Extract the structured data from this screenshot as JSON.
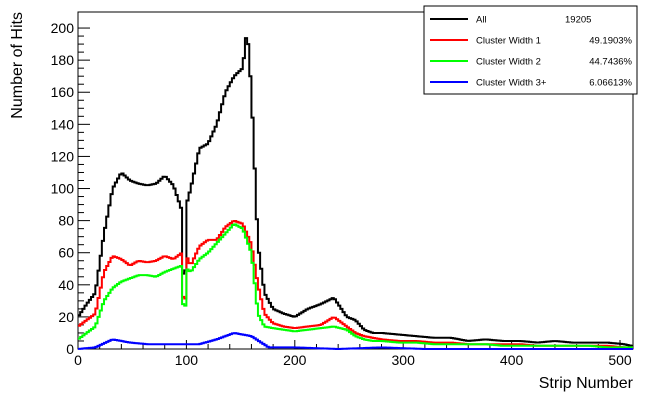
{
  "chart_data": {
    "type": "line",
    "title": "",
    "xlabel": "Strip Number",
    "ylabel": "Number of Hits",
    "xlim": [
      0,
      512
    ],
    "ylim": [
      0,
      210
    ],
    "x_ticks": [
      0,
      100,
      200,
      300,
      400,
      500
    ],
    "y_ticks": [
      0,
      20,
      40,
      60,
      80,
      100,
      120,
      140,
      160,
      180,
      200
    ],
    "grid": false,
    "legend_position": "top-right",
    "bin_width": 2,
    "series": [
      {
        "name": "All",
        "value_label": "19205",
        "color": "#000000",
        "x": [
          0,
          8,
          16,
          24,
          32,
          40,
          48,
          56,
          64,
          72,
          80,
          88,
          96,
          98,
          100,
          104,
          112,
          120,
          128,
          136,
          144,
          152,
          156,
          160,
          166,
          172,
          180,
          190,
          200,
          212,
          224,
          236,
          248,
          256,
          264,
          272,
          280,
          296,
          312,
          328,
          344,
          360,
          376,
          392,
          408,
          424,
          440,
          456,
          472,
          488,
          504,
          510
        ],
        "y": [
          20,
          28,
          35,
          72,
          100,
          110,
          105,
          103,
          102,
          103,
          108,
          102,
          86,
          8,
          90,
          100,
          125,
          128,
          140,
          160,
          170,
          175,
          200,
          160,
          65,
          35,
          25,
          22,
          20,
          25,
          28,
          32,
          20,
          18,
          12,
          10,
          10,
          9,
          8,
          7,
          7,
          5,
          6,
          5,
          5,
          4,
          5,
          4,
          4,
          4,
          3,
          2
        ]
      },
      {
        "name": "Cluster Width 1",
        "value_label": "49.1903%",
        "color": "#ff0000",
        "x": [
          0,
          8,
          16,
          24,
          32,
          40,
          48,
          56,
          64,
          72,
          80,
          88,
          96,
          98,
          100,
          104,
          112,
          120,
          128,
          136,
          144,
          152,
          160,
          166,
          172,
          180,
          190,
          200,
          212,
          224,
          236,
          248,
          256,
          264,
          272,
          280,
          296,
          312,
          328,
          344,
          360,
          376,
          392,
          408,
          424,
          440,
          456,
          472,
          488,
          504,
          510
        ],
        "y": [
          14,
          18,
          22,
          48,
          58,
          56,
          52,
          55,
          54,
          55,
          58,
          56,
          60,
          5,
          58,
          52,
          64,
          68,
          68,
          76,
          80,
          78,
          65,
          40,
          22,
          16,
          14,
          13,
          14,
          15,
          20,
          14,
          10,
          8,
          7,
          6,
          5,
          5,
          4,
          4,
          3,
          3,
          3,
          3,
          2,
          2,
          2,
          2,
          2,
          1,
          1
        ]
      },
      {
        "name": "Cluster Width 2",
        "value_label": "44.7436%",
        "color": "#00ff00",
        "x": [
          0,
          8,
          16,
          24,
          32,
          40,
          48,
          56,
          64,
          72,
          80,
          88,
          96,
          98,
          100,
          104,
          112,
          120,
          128,
          136,
          144,
          152,
          160,
          166,
          172,
          180,
          190,
          200,
          212,
          224,
          236,
          248,
          256,
          264,
          272,
          280,
          296,
          312,
          328,
          344,
          360,
          376,
          392,
          408,
          424,
          440,
          456,
          472,
          488,
          504,
          510
        ],
        "y": [
          6,
          10,
          14,
          30,
          38,
          42,
          44,
          46,
          46,
          45,
          48,
          50,
          52,
          4,
          50,
          48,
          56,
          60,
          66,
          72,
          78,
          75,
          60,
          22,
          14,
          13,
          12,
          11,
          12,
          13,
          14,
          12,
          8,
          6,
          5,
          5,
          4,
          4,
          3,
          3,
          3,
          3,
          2,
          2,
          2,
          2,
          2,
          2,
          1,
          1,
          1
        ]
      },
      {
        "name": "Cluster Width 3+",
        "value_label": "6.06613%",
        "color": "#0000ff",
        "x": [
          0,
          16,
          32,
          48,
          64,
          80,
          96,
          112,
          128,
          144,
          160,
          176,
          200,
          240,
          280,
          320,
          360,
          400,
          440,
          480,
          510
        ],
        "y": [
          0,
          1,
          6,
          4,
          3,
          3,
          3,
          3,
          6,
          10,
          8,
          1,
          1,
          0,
          1,
          0,
          0,
          0,
          0,
          0,
          0
        ]
      }
    ]
  }
}
